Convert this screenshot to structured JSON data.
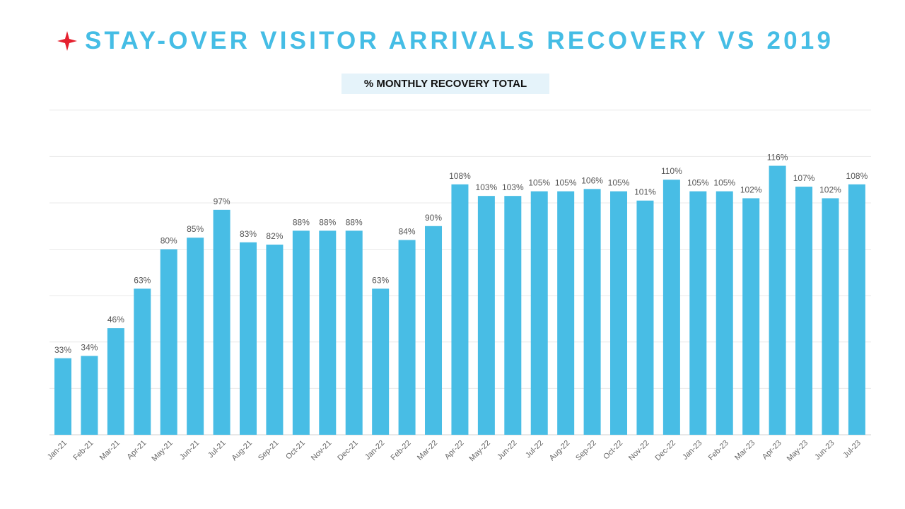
{
  "header": {
    "title": "STAY-OVER VISITOR ARRIVALS RECOVERY VS 2019",
    "star_icon": "four-point-star-icon",
    "star_color": "#e5202e",
    "title_color": "#45bde5"
  },
  "chart_data": {
    "type": "bar",
    "title": "% MONTHLY RECOVERY TOTAL",
    "xlabel": "",
    "ylabel": "",
    "ylim": [
      0,
      140
    ],
    "grid": true,
    "bar_color": "#48bde5",
    "categories": [
      "Jan-21",
      "Feb-21",
      "Mar-21",
      "Apr-21",
      "May-21",
      "Jun-21",
      "Jul-21",
      "Aug-21",
      "Sep-21",
      "Oct-21",
      "Nov-21",
      "Dec-21",
      "Jan-22",
      "Feb-22",
      "Mar-22",
      "Apr-22",
      "May-22",
      "Jun-22",
      "Jul-22",
      "Aug-22",
      "Sep-22",
      "Oct-22",
      "Nov-22",
      "Dec-22",
      "Jan-23",
      "Feb-23",
      "Mar-23",
      "Apr-23",
      "May-23",
      "Jun-23",
      "Jul-23"
    ],
    "values": [
      33,
      34,
      46,
      63,
      80,
      85,
      97,
      83,
      82,
      88,
      88,
      88,
      63,
      84,
      90,
      108,
      103,
      103,
      105,
      105,
      106,
      105,
      101,
      110,
      105,
      105,
      102,
      116,
      107,
      102,
      108
    ],
    "data_labels": [
      "33%",
      "34%",
      "46%",
      "63%",
      "80%",
      "85%",
      "97%",
      "83%",
      "82%",
      "88%",
      "88%",
      "88%",
      "63%",
      "84%",
      "90%",
      "108%",
      "103%",
      "103%",
      "105%",
      "105%",
      "106%",
      "105%",
      "101%",
      "110%",
      "105%",
      "105%",
      "102%",
      "116%",
      "107%",
      "102%",
      "108%"
    ]
  }
}
